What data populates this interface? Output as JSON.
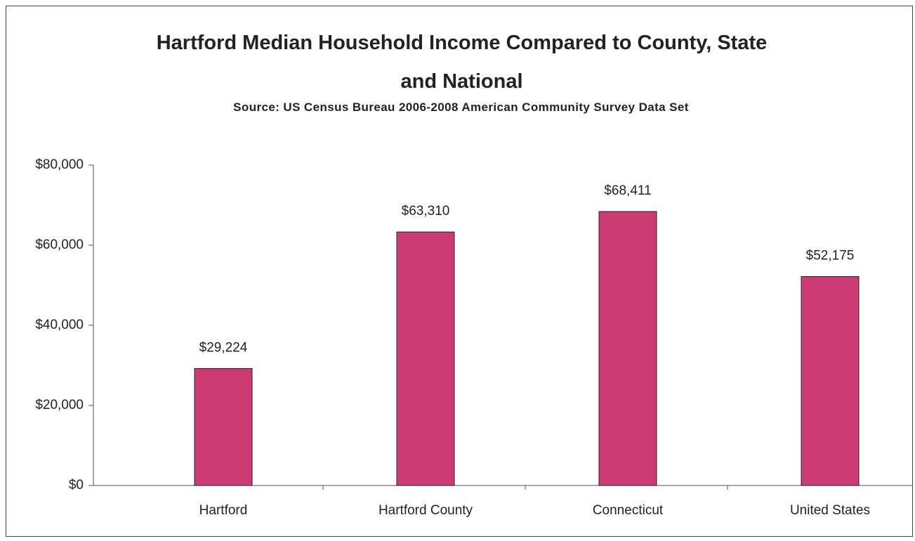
{
  "chart_data": {
    "type": "bar",
    "title": "Hartford Median Household Income Compared to County, State and National",
    "subtitle": "Source: US Census Bureau 2006-2008 American Community Survey Data Set",
    "categories": [
      "Hartford",
      "Hartford County",
      "Connecticut",
      "United States"
    ],
    "values": [
      29224,
      63310,
      68411,
      52175
    ],
    "value_labels": [
      "$29,224",
      "$63,310",
      "$68,411",
      "$52,175"
    ],
    "color": "#cc3a73",
    "ylim": [
      0,
      80000
    ],
    "yticks": [
      {
        "value": 0,
        "label": "$0"
      },
      {
        "value": 20000,
        "label": "$20,000"
      },
      {
        "value": 40000,
        "label": "$40,000"
      },
      {
        "value": 60000,
        "label": "$60,000"
      },
      {
        "value": 80000,
        "label": "$80,000"
      }
    ],
    "grid": false
  }
}
